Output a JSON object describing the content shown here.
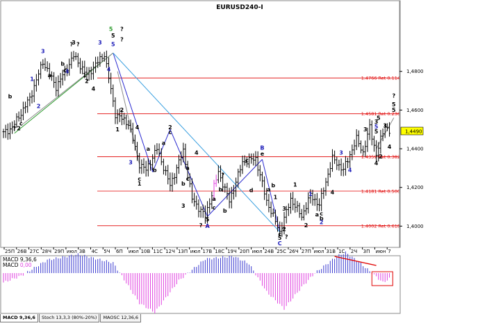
{
  "chart_data": {
    "type": "candlestick",
    "title": "EURUSD240-I",
    "y_range": [
      1.389,
      1.509
    ],
    "y_ticks": [
      "1,4800",
      "1,4600",
      "1,4400",
      "1,4200",
      "1,4000"
    ],
    "x_ticks": [
      "25Π",
      "26B",
      "27C",
      "28Ч",
      "29Π",
      "июл",
      "3B",
      "4C",
      "5Ч",
      "6Π",
      "июл",
      "10B",
      "11C",
      "12Ч",
      "13Π",
      "июл",
      "17B",
      "18C",
      "19Ч",
      "20Π",
      "июл",
      "24B",
      "25C",
      "26Ч",
      "27Π",
      "июл",
      "31B",
      "1C",
      "2Ч",
      "3Π",
      "июн",
      "7"
    ],
    "current_price": "1,4490",
    "retracements": [
      {
        "label": "1.4766 Ret 0.114",
        "value": 1.4766
      },
      {
        "label": "1.4581 Ret 0.236",
        "value": 1.4581
      },
      {
        "label": "1.4359 Ret 0.382",
        "value": 1.4359
      },
      {
        "label": "1.4181 Ret 0.500",
        "value": 1.4181
      },
      {
        "label": "1.4002 Ret 0.618",
        "value": 1.4002
      }
    ],
    "pivots": [
      {
        "i": 0,
        "p": 1.448
      },
      {
        "i": 4,
        "p": 1.451
      },
      {
        "i": 12,
        "p": 1.466
      },
      {
        "i": 18,
        "p": 1.485
      },
      {
        "i": 24,
        "p": 1.472
      },
      {
        "i": 32,
        "p": 1.488
      },
      {
        "i": 38,
        "p": 1.478
      },
      {
        "i": 46,
        "p": 1.489
      },
      {
        "i": 51,
        "p": 1.458
      },
      {
        "i": 57,
        "p": 1.453
      },
      {
        "i": 62,
        "p": 1.432
      },
      {
        "i": 65,
        "p": 1.429
      },
      {
        "i": 70,
        "p": 1.44
      },
      {
        "i": 76,
        "p": 1.421
      },
      {
        "i": 82,
        "p": 1.439
      },
      {
        "i": 86,
        "p": 1.414
      },
      {
        "i": 92,
        "p": 1.405
      },
      {
        "i": 98,
        "p": 1.428
      },
      {
        "i": 103,
        "p": 1.413
      },
      {
        "i": 109,
        "p": 1.433
      },
      {
        "i": 115,
        "p": 1.435
      },
      {
        "i": 120,
        "p": 1.413
      },
      {
        "i": 126,
        "p": 1.397
      },
      {
        "i": 131,
        "p": 1.414
      },
      {
        "i": 136,
        "p": 1.405
      },
      {
        "i": 140,
        "p": 1.416
      },
      {
        "i": 144,
        "p": 1.411
      },
      {
        "i": 150,
        "p": 1.435
      },
      {
        "i": 155,
        "p": 1.429
      },
      {
        "i": 161,
        "p": 1.445
      },
      {
        "i": 164,
        "p": 1.438
      },
      {
        "i": 167,
        "p": 1.451
      },
      {
        "i": 170,
        "p": 1.437
      },
      {
        "i": 174,
        "p": 1.452
      },
      {
        "i": 176,
        "p": 1.449
      }
    ],
    "macd": {
      "label": "MACD 9,36,6",
      "value_label": "MACD 0,00",
      "pivots": [
        {
          "i": 0,
          "v": -10
        },
        {
          "i": 8,
          "v": -3
        },
        {
          "i": 20,
          "v": 14
        },
        {
          "i": 34,
          "v": 20
        },
        {
          "i": 50,
          "v": 11
        },
        {
          "i": 62,
          "v": -32
        },
        {
          "i": 69,
          "v": -42
        },
        {
          "i": 80,
          "v": -8
        },
        {
          "i": 92,
          "v": 15
        },
        {
          "i": 105,
          "v": 18
        },
        {
          "i": 112,
          "v": 10
        },
        {
          "i": 120,
          "v": -20
        },
        {
          "i": 128,
          "v": -38
        },
        {
          "i": 136,
          "v": -15
        },
        {
          "i": 142,
          "v": 0
        },
        {
          "i": 152,
          "v": 18
        },
        {
          "i": 156,
          "v": 22
        },
        {
          "i": 162,
          "v": 12
        },
        {
          "i": 168,
          "v": 0
        },
        {
          "i": 173,
          "v": -10
        },
        {
          "i": 176,
          "v": -6
        }
      ],
      "range": [
        -50,
        30
      ]
    },
    "wave_labels": [
      {
        "t": "3",
        "i": 18,
        "p": 1.4895,
        "c": "#1a1ab8"
      },
      {
        "t": "?",
        "i": 31,
        "p": 1.493,
        "c": "#000"
      },
      {
        "t": "3",
        "i": 32,
        "p": 1.494,
        "c": "#000"
      },
      {
        "t": "?",
        "i": 34,
        "p": 1.493,
        "c": "#000"
      },
      {
        "t": "4",
        "i": 29,
        "p": 1.479,
        "c": "#1a1ab8"
      },
      {
        "t": "a",
        "i": 21,
        "p": 1.477,
        "c": "#000"
      },
      {
        "t": "b",
        "i": 27,
        "p": 1.483,
        "c": "#000"
      },
      {
        "t": "c",
        "i": 28,
        "p": 1.4795,
        "c": "#000"
      },
      {
        "t": "1",
        "i": 13,
        "p": 1.475,
        "c": "#1a1ab8"
      },
      {
        "t": "2",
        "i": 16,
        "p": 1.461,
        "c": "#1a1ab8"
      },
      {
        "t": "b",
        "i": 3,
        "p": 1.466,
        "c": "#000"
      },
      {
        "t": "c",
        "i": 8,
        "p": 1.452,
        "c": "#000"
      },
      {
        "t": "?",
        "i": 5,
        "p": 1.4495,
        "c": "#000"
      },
      {
        "t": "2",
        "i": 7,
        "p": 1.4495,
        "c": "#000"
      },
      {
        "t": "1",
        "i": 37,
        "p": 1.477,
        "c": "#000"
      },
      {
        "t": "2",
        "i": 38,
        "p": 1.474,
        "c": "#000"
      },
      {
        "t": "4",
        "i": 41,
        "p": 1.47,
        "c": "#000"
      },
      {
        "t": "3",
        "i": 44,
        "p": 1.494,
        "c": "#1a1ab8"
      },
      {
        "t": "5",
        "i": 49,
        "p": 1.501,
        "c": "#2a9a2a"
      },
      {
        "t": "5",
        "i": 50,
        "p": 1.4975,
        "c": "#000"
      },
      {
        "t": "5",
        "i": 50,
        "p": 1.493,
        "c": "#1a1ab8"
      },
      {
        "t": "?",
        "i": 54,
        "p": 1.501,
        "c": "#000"
      },
      {
        "t": "?",
        "i": 54,
        "p": 1.4955,
        "c": "#000"
      },
      {
        "t": "4",
        "i": 48,
        "p": 1.48,
        "c": "#1a1ab8"
      },
      {
        "t": "2",
        "i": 54,
        "p": 1.459,
        "c": "#000"
      },
      {
        "t": "1",
        "i": 52,
        "p": 1.449,
        "c": "#000"
      },
      {
        "t": "4",
        "i": 61,
        "p": 1.45,
        "c": "#000"
      },
      {
        "t": "3",
        "i": 58,
        "p": 1.432,
        "c": "#1a1ab8"
      },
      {
        "t": "a",
        "i": 66,
        "p": 1.439,
        "c": "#000"
      },
      {
        "t": "c",
        "i": 62,
        "p": 1.4235,
        "c": "#000"
      },
      {
        "t": "1",
        "i": 62,
        "p": 1.421,
        "c": "#000"
      },
      {
        "t": "b",
        "i": 69,
        "p": 1.428,
        "c": "#000"
      },
      {
        "t": "2",
        "i": 76,
        "p": 1.45,
        "c": "#000"
      },
      {
        "t": "c",
        "i": 76,
        "p": 1.4475,
        "c": "#000"
      },
      {
        "t": "a",
        "i": 73,
        "p": 1.442,
        "c": "#000"
      },
      {
        "t": "a",
        "i": 84,
        "p": 1.429,
        "c": "#000"
      },
      {
        "t": "4",
        "i": 88,
        "p": 1.437,
        "c": "#000"
      },
      {
        "t": "c",
        "i": 84,
        "p": 1.4235,
        "c": "#000"
      },
      {
        "t": "b",
        "i": 82,
        "p": 1.421,
        "c": "#000"
      },
      {
        "t": "3",
        "i": 82,
        "p": 1.4095,
        "c": "#000"
      },
      {
        "t": "?",
        "i": 90,
        "p": 1.3995,
        "c": "#000"
      },
      {
        "t": "5",
        "i": 93,
        "p": 1.4025,
        "c": "#000"
      },
      {
        "t": "A",
        "i": 93,
        "p": 1.399,
        "c": "#1a1ab8"
      },
      {
        "t": "a",
        "i": 96,
        "p": 1.413,
        "c": "#000"
      },
      {
        "t": "b",
        "i": 99,
        "p": 1.418,
        "c": "#000"
      },
      {
        "t": "c",
        "i": 96,
        "p": 1.4085,
        "c": "#000"
      },
      {
        "t": "b",
        "i": 101,
        "p": 1.407,
        "c": "#000"
      },
      {
        "t": "?",
        "i": 100,
        "p": 1.4255,
        "c": "#000"
      },
      {
        "t": "d",
        "i": 113,
        "p": 1.4175,
        "c": "#000"
      },
      {
        "t": "c",
        "i": 111,
        "p": 1.433,
        "c": "#000"
      },
      {
        "t": "B",
        "i": 118,
        "p": 1.4395,
        "c": "#1a1ab8"
      },
      {
        "t": "e",
        "i": 118,
        "p": 1.4365,
        "c": "#000"
      },
      {
        "t": "a",
        "i": 121,
        "p": 1.418,
        "c": "#000"
      },
      {
        "t": "b",
        "i": 123,
        "p": 1.42,
        "c": "#000"
      },
      {
        "t": "1",
        "i": 124,
        "p": 1.414,
        "c": "#000"
      },
      {
        "t": "3",
        "i": 128,
        "p": 1.408,
        "c": "#000"
      },
      {
        "t": "2",
        "i": 128,
        "p": 1.3975,
        "c": "#000"
      },
      {
        "t": "c",
        "i": 126,
        "p": 1.395,
        "c": "#000"
      },
      {
        "t": "5",
        "i": 126,
        "p": 1.393,
        "c": "#000"
      },
      {
        "t": "?",
        "i": 129,
        "p": 1.3935,
        "c": "#000"
      },
      {
        "t": "C",
        "i": 126,
        "p": 1.39,
        "c": "#1a1ab8"
      },
      {
        "t": "1",
        "i": 133,
        "p": 1.4205,
        "c": "#000"
      },
      {
        "t": "2",
        "i": 138,
        "p": 1.3995,
        "c": "#000"
      },
      {
        "t": "a",
        "i": 143,
        "p": 1.405,
        "c": "#000"
      },
      {
        "t": "b",
        "i": 145,
        "p": 1.403,
        "c": "#000"
      },
      {
        "t": "1",
        "i": 140,
        "p": 1.4155,
        "c": "#1a1ab8"
      },
      {
        "t": "2",
        "i": 145,
        "p": 1.401,
        "c": "#1a1ab8"
      },
      {
        "t": "c",
        "i": 145,
        "p": 1.4055,
        "c": "#000"
      },
      {
        "t": "4",
        "i": 150,
        "p": 1.4165,
        "c": "#000"
      },
      {
        "t": "3",
        "i": 154,
        "p": 1.437,
        "c": "#1a1ab8"
      },
      {
        "t": "4",
        "i": 158,
        "p": 1.428,
        "c": "#1a1ab8"
      },
      {
        "t": "3",
        "i": 165,
        "p": 1.449,
        "c": "#000"
      },
      {
        "t": "5",
        "i": 171,
        "p": 1.455,
        "c": "#000"
      },
      {
        "t": "3",
        "i": 170,
        "p": 1.453,
        "c": "#000"
      },
      {
        "t": "5",
        "i": 170,
        "p": 1.4505,
        "c": "#1a1ab8"
      },
      {
        "t": "5",
        "i": 170,
        "p": 1.448,
        "c": "#000"
      },
      {
        "t": "3",
        "i": 174,
        "p": 1.451,
        "c": "#000"
      },
      {
        "t": "4",
        "i": 170,
        "p": 1.4315,
        "c": "#000"
      },
      {
        "t": "2",
        "i": 172,
        "p": 1.435,
        "c": "#000"
      },
      {
        "t": "4",
        "i": 176,
        "p": 1.44,
        "c": "#000"
      },
      {
        "t": "?",
        "i": 178,
        "p": 1.4665,
        "c": "#000"
      },
      {
        "t": "5",
        "i": 178,
        "p": 1.462,
        "c": "#000"
      },
      {
        "t": "5",
        "i": 178,
        "p": 1.459,
        "c": "#000"
      }
    ],
    "trend_lines": [
      {
        "i1": 5,
        "p1": 1.448,
        "i2": 50,
        "p2": 1.4895,
        "color": "#2a9a2a"
      },
      {
        "i1": 8,
        "p1": 1.452,
        "i2": 50,
        "p2": 1.4895,
        "color": "#8a8a8a"
      },
      {
        "i1": 50,
        "p1": 1.4895,
        "i2": 68,
        "p2": 1.428,
        "color": "#2a2ad0"
      },
      {
        "i1": 68,
        "p1": 1.428,
        "i2": 76,
        "p2": 1.45,
        "color": "#2a2ad0"
      },
      {
        "i1": 76,
        "p1": 1.45,
        "i2": 93,
        "p2": 1.405,
        "color": "#2a2ad0"
      },
      {
        "i1": 93,
        "p1": 1.405,
        "i2": 118,
        "p2": 1.4345,
        "color": "#2a2ad0"
      },
      {
        "i1": 118,
        "p1": 1.4345,
        "i2": 126,
        "p2": 1.397,
        "color": "#2a2ad0"
      },
      {
        "i1": 50,
        "p1": 1.4895,
        "i2": 126,
        "p2": 1.397,
        "color": "#3aa0e0"
      },
      {
        "i1": 52,
        "p1": 1.48,
        "i2": 62,
        "p2": 1.432,
        "color": "#8a8a8a"
      },
      {
        "i1": 170,
        "p1": 1.44,
        "i2": 178,
        "p2": 1.456,
        "color": "#8a8a8a"
      }
    ],
    "bearish_marker_bars": [
      96,
      97
    ],
    "series_colors": {
      "candles": "#000000",
      "retracement": "#e00000",
      "macd_up": "#3a3ad0",
      "macd_down": "#e040e0",
      "divergence": "#e00000"
    }
  },
  "tabs": [
    {
      "label": "MACD 9,36,6",
      "active": true
    },
    {
      "label": "Stoch 13,3,3 (80%-20%)",
      "active": false
    },
    {
      "label": "MAOSC 12,36,6",
      "active": false
    }
  ]
}
